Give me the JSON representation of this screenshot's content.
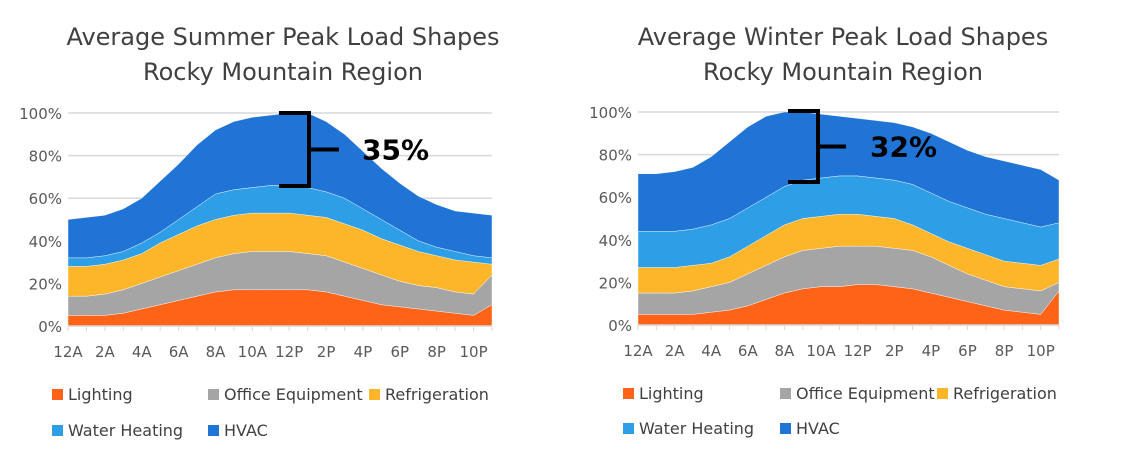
{
  "colors": {
    "Lighting": "#FF6317",
    "Office Equipment": "#A5A5A5",
    "Refrigeration": "#FDB62A",
    "Water Heating": "#2E9FE6",
    "HVAC": "#1F74D6"
  },
  "chart_data": [
    {
      "type": "area",
      "stacked": true,
      "title": [
        "Average Summer Peak Load Shapes",
        "Rocky Mountain Region"
      ],
      "x": [
        0,
        1,
        2,
        3,
        4,
        5,
        6,
        7,
        8,
        9,
        10,
        11,
        12,
        13,
        14,
        15,
        16,
        17,
        18,
        19,
        20,
        21,
        22,
        23
      ],
      "xtick_labels": [
        "12A",
        "2A",
        "4A",
        "6A",
        "8A",
        "10A",
        "12P",
        "2P",
        "4P",
        "6P",
        "8P",
        "10P"
      ],
      "yticks": [
        "0%",
        "20%",
        "40%",
        "60%",
        "80%",
        "100%"
      ],
      "ylim": [
        0,
        100
      ],
      "grid": true,
      "legend": "bottom",
      "annotation": "35%",
      "series": [
        {
          "name": "Lighting",
          "values": [
            5,
            5,
            5,
            6,
            8,
            10,
            12,
            14,
            16,
            17,
            17,
            17,
            17,
            17,
            16,
            14,
            12,
            10,
            9,
            8,
            7,
            6,
            5,
            10
          ]
        },
        {
          "name": "Office Equipment",
          "values": [
            9,
            9,
            10,
            11,
            12,
            13,
            14,
            15,
            16,
            17,
            18,
            18,
            18,
            17,
            17,
            16,
            15,
            14,
            12,
            11,
            11,
            10,
            10,
            14
          ]
        },
        {
          "name": "Refrigeration",
          "values": [
            14,
            14,
            14,
            14,
            14,
            16,
            17,
            18,
            18,
            18,
            18,
            18,
            18,
            18,
            18,
            18,
            18,
            17,
            17,
            16,
            15,
            15,
            15,
            5
          ]
        },
        {
          "name": "Water Heating",
          "values": [
            4,
            4,
            4,
            4,
            5,
            5,
            7,
            9,
            12,
            12,
            12,
            13,
            13,
            13,
            12,
            12,
            10,
            9,
            7,
            5,
            4,
            4,
            3,
            3
          ]
        },
        {
          "name": "HVAC",
          "values": [
            18,
            19,
            19,
            20,
            21,
            24,
            26,
            29,
            30,
            32,
            33,
            33,
            34,
            35,
            33,
            30,
            27,
            24,
            22,
            21,
            20,
            19,
            20,
            20
          ]
        }
      ]
    },
    {
      "type": "area",
      "stacked": true,
      "title": [
        "Average Winter Peak Load Shapes",
        "Rocky Mountain Region"
      ],
      "x": [
        0,
        1,
        2,
        3,
        4,
        5,
        6,
        7,
        8,
        9,
        10,
        11,
        12,
        13,
        14,
        15,
        16,
        17,
        18,
        19,
        20,
        21,
        22,
        23
      ],
      "xtick_labels": [
        "12A",
        "2A",
        "4A",
        "6A",
        "8A",
        "10A",
        "12P",
        "2P",
        "4P",
        "6P",
        "8P",
        "10P"
      ],
      "yticks": [
        "0%",
        "20%",
        "40%",
        "60%",
        "80%",
        "100%"
      ],
      "ylim": [
        0,
        100
      ],
      "grid": true,
      "legend": "bottom",
      "annotation": "32%",
      "series": [
        {
          "name": "Lighting",
          "values": [
            5,
            5,
            5,
            5,
            6,
            7,
            9,
            12,
            15,
            17,
            18,
            18,
            19,
            19,
            18,
            17,
            15,
            13,
            11,
            9,
            7,
            6,
            5,
            16
          ]
        },
        {
          "name": "Office Equipment",
          "values": [
            10,
            10,
            10,
            11,
            12,
            13,
            15,
            16,
            17,
            18,
            18,
            19,
            18,
            18,
            18,
            18,
            17,
            15,
            13,
            12,
            11,
            11,
            11,
            4
          ]
        },
        {
          "name": "Refrigeration",
          "values": [
            12,
            12,
            12,
            12,
            11,
            12,
            13,
            14,
            15,
            15,
            15,
            15,
            15,
            14,
            14,
            12,
            11,
            11,
            12,
            12,
            12,
            12,
            12,
            11
          ]
        },
        {
          "name": "Water Heating",
          "values": [
            17,
            17,
            17,
            17,
            18,
            18,
            18,
            18,
            18,
            18,
            18,
            18,
            18,
            18,
            18,
            19,
            19,
            19,
            19,
            19,
            20,
            19,
            18,
            17
          ]
        },
        {
          "name": "HVAC",
          "values": [
            27,
            27,
            28,
            29,
            32,
            36,
            38,
            38,
            35,
            32,
            30,
            28,
            27,
            27,
            27,
            27,
            28,
            28,
            27,
            27,
            27,
            27,
            27,
            20
          ]
        }
      ]
    }
  ]
}
